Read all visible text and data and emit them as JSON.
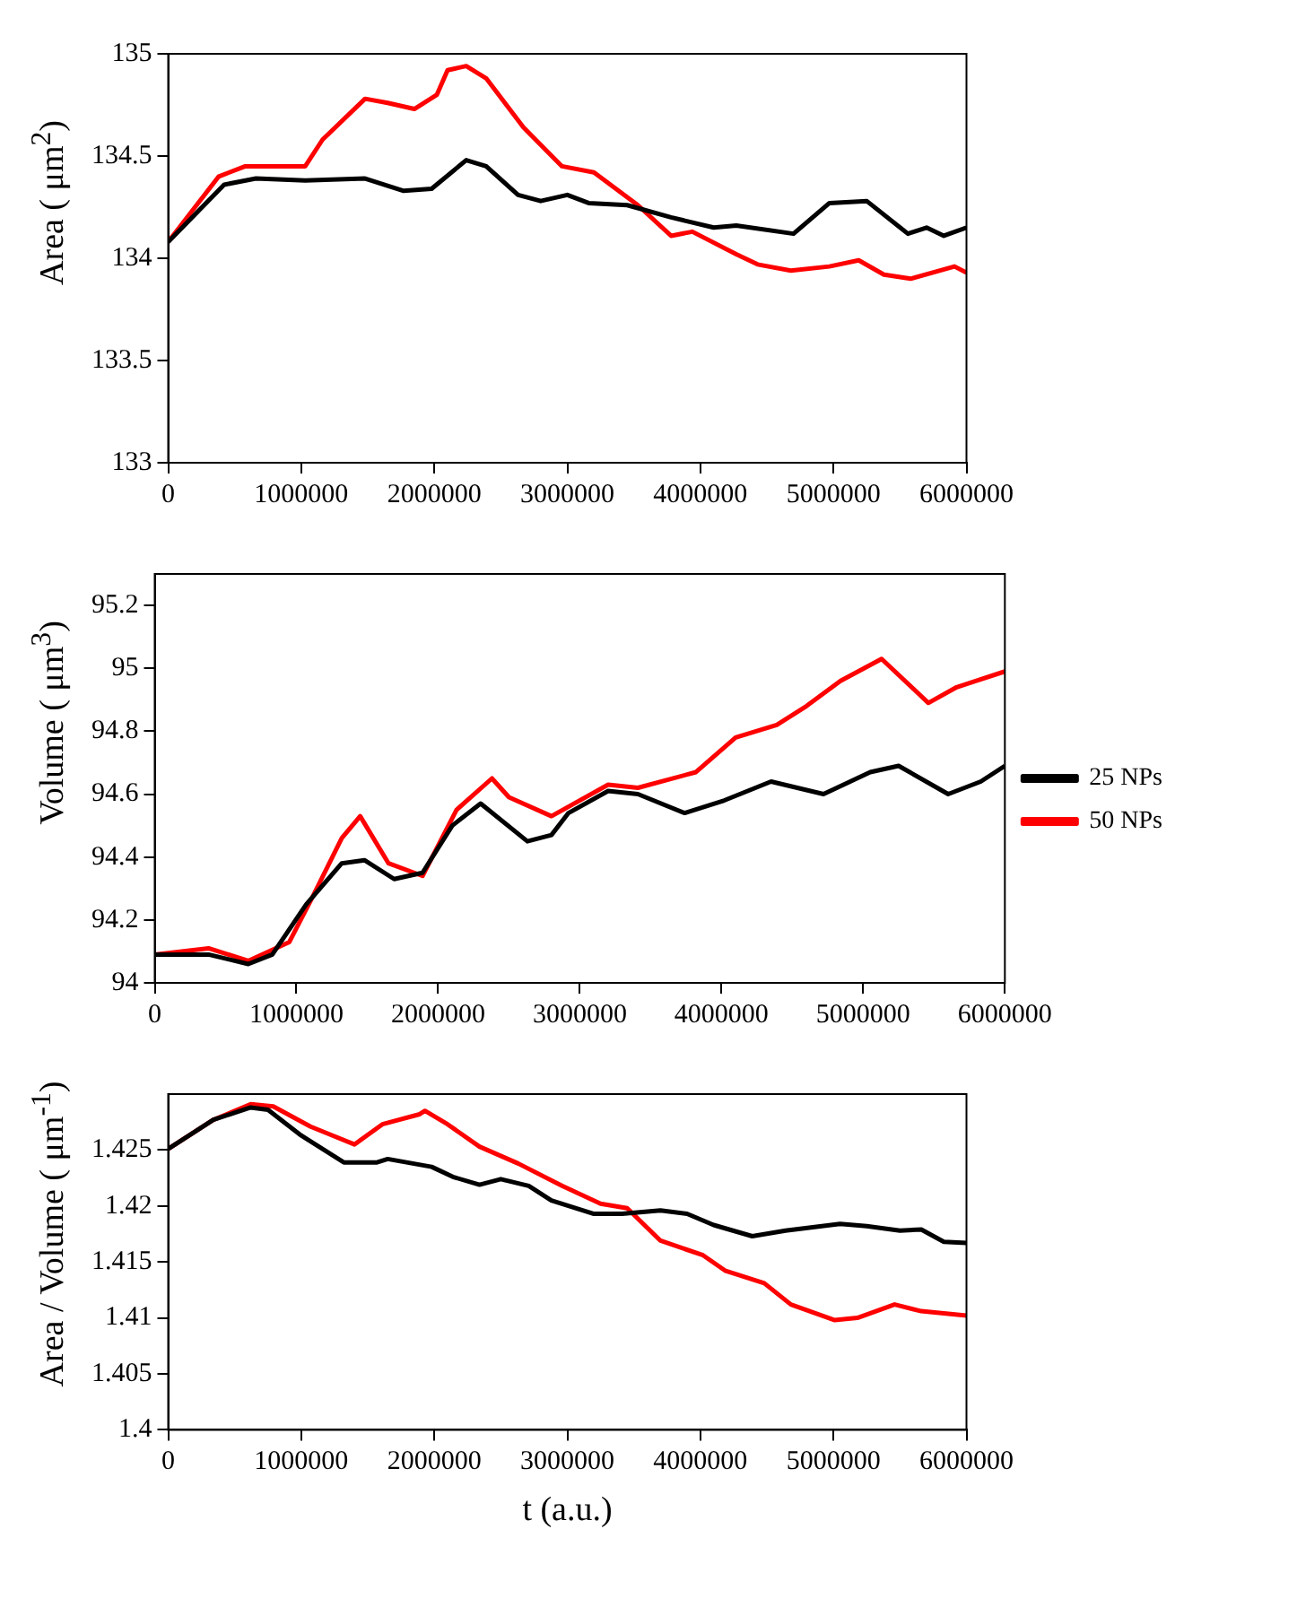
{
  "chart_data": [
    {
      "type": "line",
      "ylabel": "Area ( μm$^{2}$)",
      "xlim": [
        0,
        6000000
      ],
      "xticks": [
        0,
        1000000,
        2000000,
        3000000,
        4000000,
        5000000,
        6000000
      ],
      "ylim": [
        133,
        135
      ],
      "yticks": [
        133,
        133.5,
        134,
        134.5,
        135
      ],
      "series": [
        {
          "color": "#000000",
          "x": [
            0,
            420000,
            660000,
            1030000,
            1480000,
            1770000,
            1980000,
            2240000,
            2390000,
            2630000,
            2800000,
            3000000,
            3160000,
            3450000,
            3780000,
            4100000,
            4270000,
            4700000,
            4970000,
            5250000,
            5560000,
            5700000,
            5830000,
            6000000
          ],
          "values": [
            134.08,
            134.36,
            134.39,
            134.38,
            134.39,
            134.33,
            134.34,
            134.48,
            134.45,
            134.31,
            134.28,
            134.31,
            134.27,
            134.26,
            134.2,
            134.15,
            134.16,
            134.12,
            134.27,
            134.28,
            134.12,
            134.15,
            134.11,
            134.15
          ]
        },
        {
          "color": "#ff0000",
          "x": [
            0,
            380000,
            580000,
            1030000,
            1160000,
            1480000,
            1650000,
            1850000,
            2020000,
            2100000,
            2240000,
            2390000,
            2670000,
            2960000,
            3200000,
            3530000,
            3780000,
            3940000,
            4270000,
            4430000,
            4680000,
            4970000,
            5190000,
            5380000,
            5580000,
            5910000,
            6000000
          ],
          "values": [
            134.08,
            134.4,
            134.45,
            134.45,
            134.58,
            134.78,
            134.76,
            134.73,
            134.8,
            134.92,
            134.94,
            134.88,
            134.64,
            134.45,
            134.42,
            134.26,
            134.11,
            134.13,
            134.02,
            133.97,
            133.94,
            133.96,
            133.99,
            133.92,
            133.9,
            133.96,
            133.93
          ]
        }
      ]
    },
    {
      "type": "line",
      "ylabel": "Volume ( μm$^{3}$)",
      "legend": "right",
      "xlim": [
        0,
        6000000
      ],
      "xticks": [
        0,
        1000000,
        2000000,
        3000000,
        4000000,
        5000000,
        6000000
      ],
      "ylim": [
        94,
        95.3
      ],
      "yticks": [
        94,
        94.2,
        94.4,
        94.6,
        94.8,
        95,
        95.2
      ],
      "series": [
        {
          "name": "25 NPs",
          "color": "#000000",
          "x": [
            0,
            380000,
            660000,
            830000,
            1070000,
            1320000,
            1480000,
            1690000,
            1890000,
            2100000,
            2300000,
            2630000,
            2800000,
            2920000,
            3200000,
            3410000,
            3740000,
            4020000,
            4350000,
            4720000,
            5050000,
            5250000,
            5600000,
            5830000,
            6000000
          ],
          "values": [
            94.09,
            94.09,
            94.06,
            94.09,
            94.25,
            94.38,
            94.39,
            94.33,
            94.35,
            94.5,
            94.57,
            94.45,
            94.47,
            94.54,
            94.61,
            94.6,
            94.54,
            94.58,
            94.64,
            94.6,
            94.67,
            94.69,
            94.6,
            94.64,
            94.69
          ]
        },
        {
          "name": "50 NPs",
          "color": "#ff0000",
          "x": [
            0,
            380000,
            660000,
            950000,
            1110000,
            1320000,
            1450000,
            1650000,
            1890000,
            2130000,
            2380000,
            2500000,
            2800000,
            3200000,
            3410000,
            3820000,
            4100000,
            4390000,
            4600000,
            4840000,
            5130000,
            5460000,
            5660000,
            6000000
          ],
          "values": [
            94.09,
            94.11,
            94.07,
            94.13,
            94.27,
            94.46,
            94.53,
            94.38,
            94.34,
            94.55,
            94.65,
            94.59,
            94.53,
            94.63,
            94.62,
            94.67,
            94.78,
            94.82,
            94.88,
            94.96,
            95.03,
            94.89,
            94.94,
            94.99
          ]
        }
      ]
    },
    {
      "type": "line",
      "ylabel": "Area / Volume ( μm$^{-1}$)",
      "xlabel": "t (a.u.)",
      "xlim": [
        0,
        6000000
      ],
      "xticks": [
        0,
        1000000,
        2000000,
        3000000,
        4000000,
        5000000,
        6000000
      ],
      "ylim": [
        1.4,
        1.43
      ],
      "yticks": [
        1.4,
        1.405,
        1.41,
        1.415,
        1.42,
        1.425
      ],
      "series": [
        {
          "color": "#000000",
          "x": [
            0,
            340000,
            620000,
            750000,
            1000000,
            1320000,
            1570000,
            1650000,
            1980000,
            2140000,
            2340000,
            2500000,
            2710000,
            2880000,
            3200000,
            3410000,
            3700000,
            3900000,
            4100000,
            4390000,
            4640000,
            5050000,
            5250000,
            5500000,
            5660000,
            5830000,
            6000000
          ],
          "values": [
            1.4251,
            1.4277,
            1.4288,
            1.4286,
            1.4263,
            1.4239,
            1.4239,
            1.4242,
            1.4235,
            1.4226,
            1.4219,
            1.4224,
            1.4218,
            1.4205,
            1.4193,
            1.4193,
            1.4196,
            1.4193,
            1.4183,
            1.4173,
            1.4178,
            1.4184,
            1.4182,
            1.4178,
            1.4179,
            1.4168,
            1.4167
          ]
        },
        {
          "color": "#ff0000",
          "x": [
            0,
            340000,
            620000,
            790000,
            1070000,
            1400000,
            1610000,
            1890000,
            1930000,
            2100000,
            2340000,
            2630000,
            2960000,
            3250000,
            3450000,
            3700000,
            4020000,
            4190000,
            4480000,
            4680000,
            5010000,
            5180000,
            5460000,
            5660000,
            6000000
          ],
          "values": [
            1.4251,
            1.4277,
            1.4291,
            1.4289,
            1.4271,
            1.4255,
            1.4273,
            1.4282,
            1.4285,
            1.4273,
            1.4253,
            1.4238,
            1.4218,
            1.4202,
            1.4198,
            1.4169,
            1.4156,
            1.4142,
            1.4131,
            1.4112,
            1.4098,
            1.41,
            1.4112,
            1.4106,
            1.4102
          ]
        }
      ]
    }
  ]
}
